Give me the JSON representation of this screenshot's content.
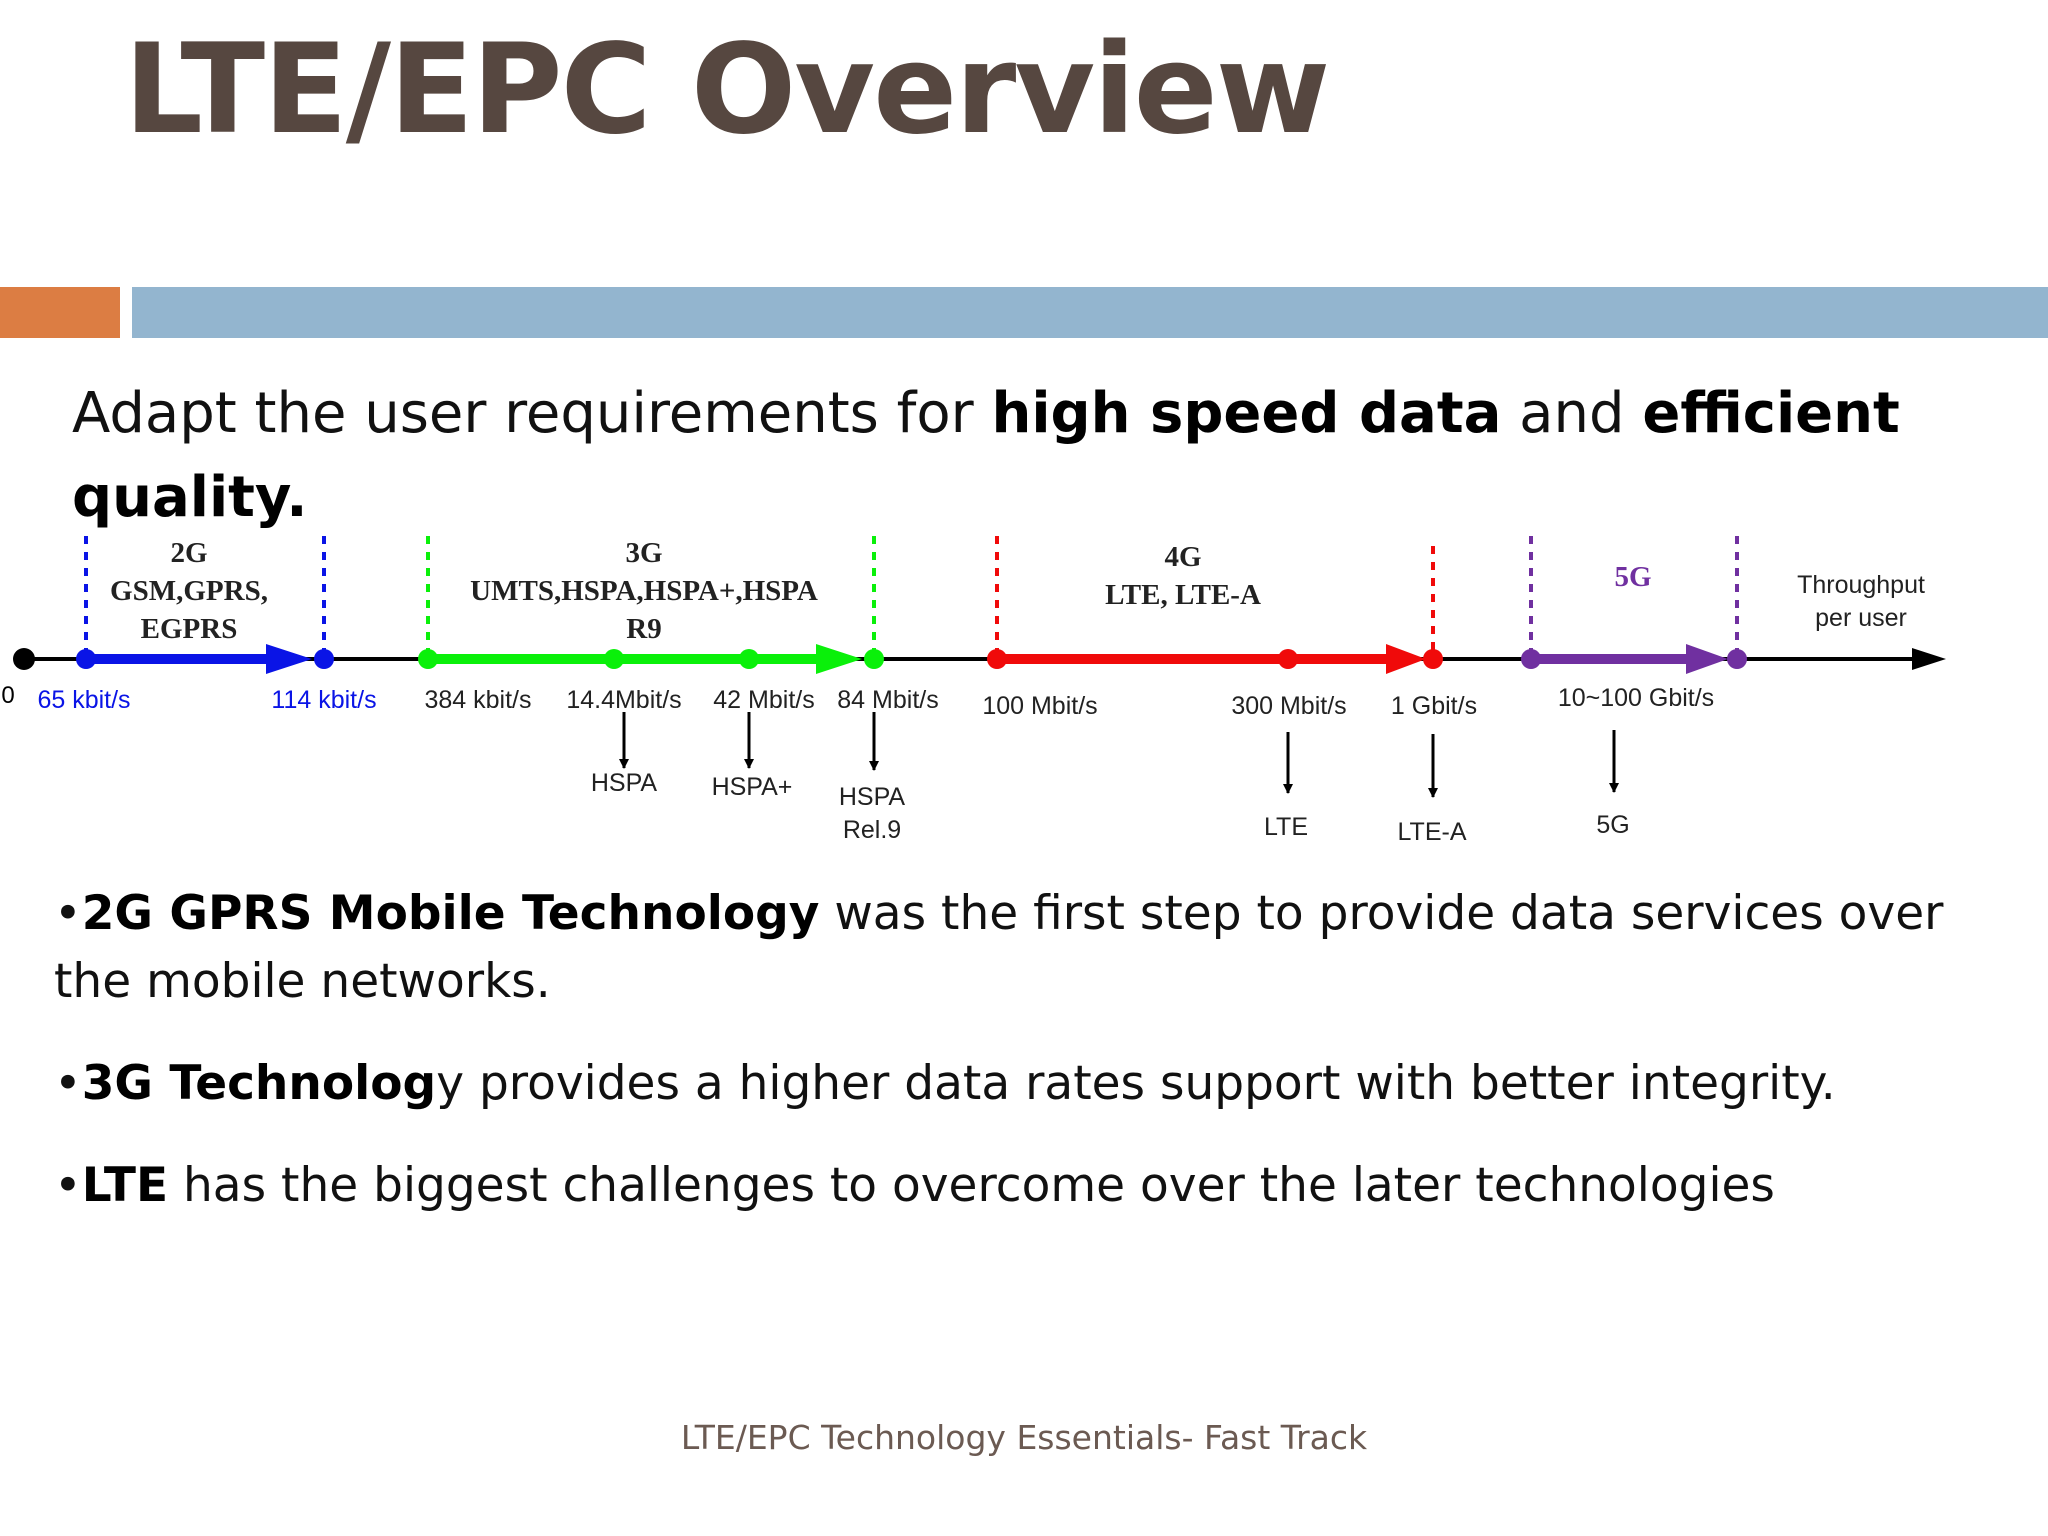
{
  "slide": {
    "title": "LTE/EPC Overview",
    "intro": {
      "part1": "Adapt the user requirements for ",
      "bold1": "high speed data",
      "part2": " and ",
      "bold2": "efficient quality",
      "part3": "."
    },
    "bullets": [
      {
        "bullet": "•",
        "bold": "2G GPRS Mobile Technology",
        "text": " was the first step to provide data services over the mobile networks."
      },
      {
        "bullet": "•",
        "bold": "3G Technolog",
        "text": "y provides a higher data rates support with better integrity."
      },
      {
        "bullet": "•",
        "bold": "LTE",
        "text": " has the biggest challenges to overcome over the later technologies"
      }
    ],
    "footer": "LTE/EPC Technology Essentials- Fast Track"
  },
  "colors": {
    "title": "#564740",
    "accent_orange": "#dc7d43",
    "accent_blue": "#93b5cf",
    "gen2": "#0a14e6",
    "gen3": "#0af00a",
    "gen4": "#f00a0a",
    "gen5": "#7030a0"
  },
  "timeline": {
    "axis_end_label": [
      "Throughput",
      "per user"
    ],
    "origin_label": "0",
    "generations": [
      {
        "lines": [
          "2G",
          "GSM,GPRS,",
          "EGPRS"
        ]
      },
      {
        "lines": [
          "3G",
          "UMTS,HSPA,HSPA+,HSPA",
          "R9"
        ]
      },
      {
        "lines": [
          "4G",
          "LTE, LTE-A"
        ]
      },
      {
        "lines": [
          "5G"
        ]
      }
    ],
    "rates": [
      "65 kbit/s",
      "114 kbit/s",
      "384 kbit/s",
      "14.4Mbit/s",
      "42 Mbit/s",
      "84 Mbit/s",
      "100 Mbit/s",
      "300 Mbit/s",
      "1 Gbit/s",
      "10~100 Gbit/s"
    ],
    "callouts": [
      {
        "lines": [
          "HSPA"
        ]
      },
      {
        "lines": [
          "HSPA+"
        ]
      },
      {
        "lines": [
          "HSPA",
          "Rel.9"
        ]
      },
      {
        "lines": [
          "LTE"
        ]
      },
      {
        "lines": [
          "LTE-A"
        ]
      },
      {
        "lines": [
          "5G"
        ]
      }
    ]
  }
}
